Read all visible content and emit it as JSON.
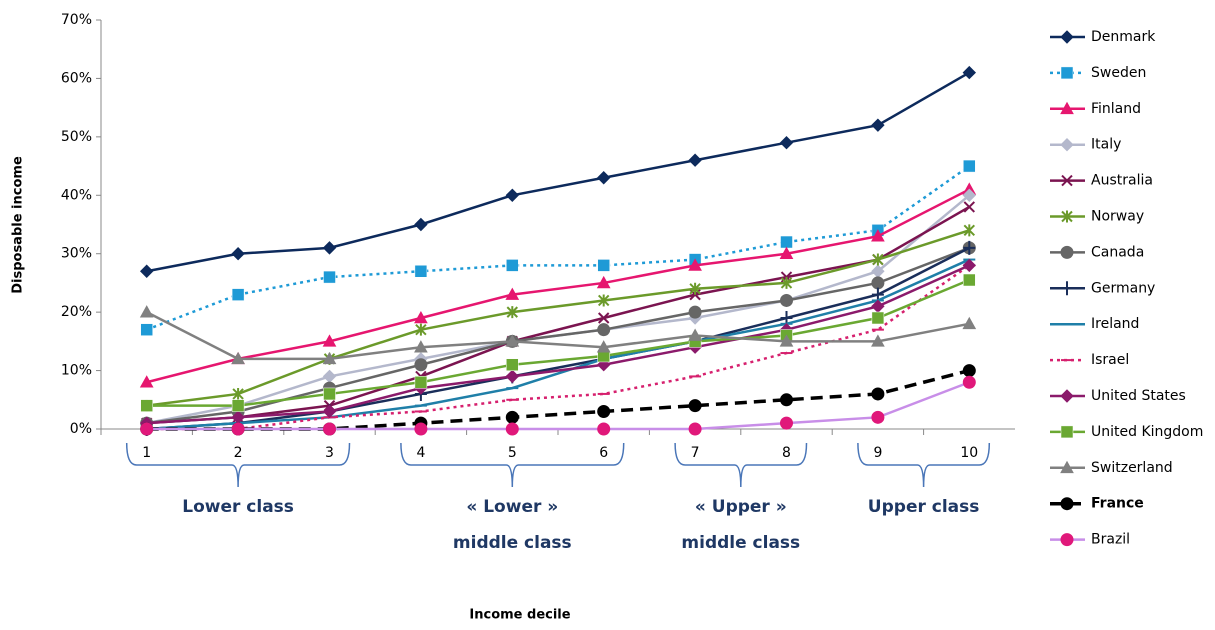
{
  "chart_data": {
    "type": "line",
    "y_label": "Disposable income",
    "x_label": "Income decile",
    "categories": [
      "1",
      "2",
      "3",
      "4",
      "5",
      "6",
      "7",
      "8",
      "9",
      "10"
    ],
    "ylim": [
      0,
      70
    ],
    "yticks": [
      {
        "value": 0,
        "label": "0%"
      },
      {
        "value": 10,
        "label": "10%"
      },
      {
        "value": 20,
        "label": "20%"
      },
      {
        "value": 30,
        "label": "30%"
      },
      {
        "value": 40,
        "label": "40%"
      },
      {
        "value": 50,
        "label": "50%"
      },
      {
        "value": 60,
        "label": "60%"
      },
      {
        "value": 70,
        "label": "70%"
      }
    ],
    "grid": false,
    "legend": "right",
    "groups": [
      [
        "Lower class"
      ],
      [
        "« Lower »",
        "middle class"
      ],
      [
        "« Upper »",
        "middle class"
      ],
      [
        "Upper class"
      ]
    ],
    "series": [
      {
        "name": "Denmark",
        "color": "#0d2a5c",
        "marker": "diamond",
        "dash": "solid",
        "values": [
          27,
          30,
          31,
          35,
          40,
          43,
          46,
          49,
          52,
          61
        ]
      },
      {
        "name": "Sweden",
        "color": "#1e9ad6",
        "marker": "square",
        "dash": "dot",
        "values": [
          17,
          23,
          26,
          27,
          28,
          28,
          29,
          32,
          34,
          45
        ]
      },
      {
        "name": "Finland",
        "color": "#e6166f",
        "marker": "triangle",
        "dash": "solid",
        "values": [
          8,
          12,
          15,
          19,
          23,
          25,
          28,
          30,
          33,
          41
        ]
      },
      {
        "name": "Italy",
        "color": "#b4b8cc",
        "marker": "diamond",
        "dash": "solid",
        "values": [
          1,
          4,
          9,
          12,
          15,
          17,
          19,
          22,
          27,
          40
        ]
      },
      {
        "name": "Australia",
        "color": "#7b1450",
        "marker": "x",
        "dash": "solid",
        "values": [
          1,
          2,
          4,
          9,
          15,
          19,
          23,
          26,
          29,
          38
        ]
      },
      {
        "name": "Norway",
        "color": "#6b9a2a",
        "marker": "star",
        "dash": "solid",
        "values": [
          4,
          6,
          12,
          17,
          20,
          22,
          24,
          25,
          29,
          34
        ]
      },
      {
        "name": "Canada",
        "color": "#666666",
        "marker": "circle",
        "dash": "solid",
        "values": [
          1,
          3,
          7,
          11,
          15,
          17,
          20,
          22,
          25,
          31
        ]
      },
      {
        "name": "Germany",
        "color": "#1a2e5a",
        "marker": "plus",
        "dash": "solid",
        "values": [
          0,
          1,
          3,
          6,
          9,
          12,
          15,
          19,
          23,
          31
        ]
      },
      {
        "name": "Ireland",
        "color": "#1f7fa8",
        "marker": "dash",
        "dash": "solid",
        "values": [
          0,
          1,
          2,
          4,
          7,
          12,
          15,
          18,
          22,
          29
        ]
      },
      {
        "name": "Israel",
        "color": "#d6206e",
        "marker": "dash",
        "dash": "dot",
        "values": [
          0,
          0,
          2,
          3,
          5,
          6,
          9,
          13,
          17,
          28
        ]
      },
      {
        "name": "United States",
        "color": "#8b1a6b",
        "marker": "diamond",
        "dash": "solid",
        "values": [
          1,
          2,
          3,
          7,
          9,
          11,
          14,
          17,
          21,
          28
        ]
      },
      {
        "name": "United Kingdom",
        "color": "#6aa832",
        "marker": "square",
        "dash": "solid",
        "values": [
          4,
          4,
          6,
          8,
          11,
          12.5,
          15,
          16,
          19,
          25.5
        ]
      },
      {
        "name": "Switzerland",
        "color": "#808080",
        "marker": "triangle",
        "dash": "solid",
        "values": [
          20,
          12,
          12,
          14,
          15,
          14,
          16,
          15,
          15,
          18
        ]
      },
      {
        "name": "France",
        "color": "#000000",
        "marker": "circle",
        "dash": "dash",
        "bold": true,
        "values": [
          0,
          0,
          0,
          1,
          2,
          3,
          4,
          5,
          6,
          10
        ]
      },
      {
        "name": "Brazil",
        "color": "#c88ee8",
        "marker": "circle",
        "marker_color": "#e0187a",
        "dash": "solid",
        "values": [
          0,
          0,
          0,
          0,
          0,
          0,
          0,
          1,
          2,
          8
        ]
      }
    ]
  }
}
